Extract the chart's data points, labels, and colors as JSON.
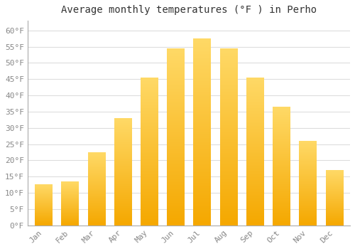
{
  "title": "Average monthly temperatures (°F ) in Perho",
  "months": [
    "Jan",
    "Feb",
    "Mar",
    "Apr",
    "May",
    "Jun",
    "Jul",
    "Aug",
    "Sep",
    "Oct",
    "Nov",
    "Dec"
  ],
  "values": [
    12.5,
    13.5,
    22.5,
    33.0,
    45.5,
    54.5,
    57.5,
    54.5,
    45.5,
    36.5,
    26.0,
    17.0
  ],
  "bar_color_bottom": "#F5A800",
  "bar_color_top": "#FFD966",
  "background_color": "#FFFFFF",
  "plot_bg_color": "#FFFFFF",
  "grid_color": "#DDDDDD",
  "ylim": [
    0,
    63
  ],
  "yticks": [
    0,
    5,
    10,
    15,
    20,
    25,
    30,
    35,
    40,
    45,
    50,
    55,
    60
  ],
  "title_fontsize": 10,
  "tick_fontsize": 8,
  "tick_color": "#888888",
  "title_color": "#333333"
}
